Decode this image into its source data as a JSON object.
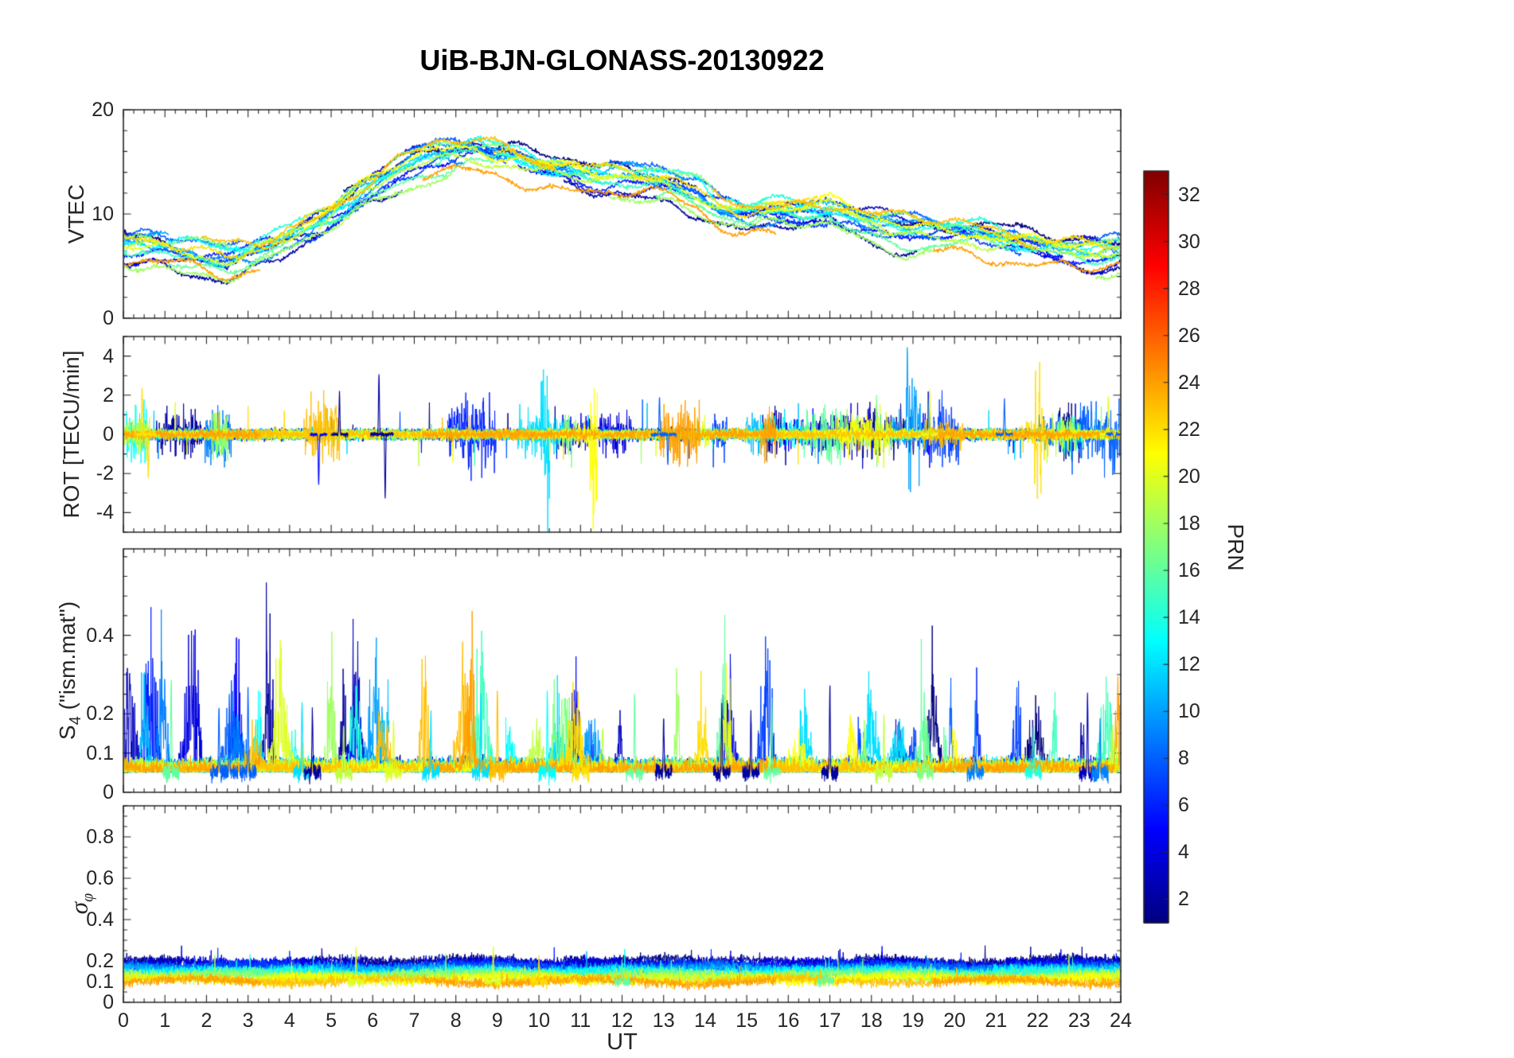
{
  "title": "UiB-BJN-GLONASS-20130922",
  "xlabel": "UT",
  "labels": {
    "vtec": "VTEC",
    "rot": "ROT [TECU/min]",
    "s4_main": "S",
    "s4_sub": "4",
    "s4_rest": " (\"ism.mat\")",
    "sigma_main": "σ",
    "sigma_sub": "φ",
    "colorbar": "PRN"
  },
  "chart_data": {
    "type": "line",
    "title": "UiB-BJN-GLONASS-20130922",
    "xlabel": "UT",
    "xlim": [
      0,
      24
    ],
    "xticks": [
      0,
      1,
      2,
      3,
      4,
      5,
      6,
      7,
      8,
      9,
      10,
      11,
      12,
      13,
      14,
      15,
      16,
      17,
      18,
      19,
      20,
      21,
      22,
      23,
      24
    ],
    "prns": [
      1,
      2,
      3,
      4,
      5,
      6,
      7,
      8,
      9,
      10,
      11,
      12,
      13,
      14,
      15,
      16,
      17,
      18,
      19,
      20,
      21,
      22,
      23,
      24
    ],
    "colorbar": {
      "label": "PRN",
      "colormap": "jet",
      "range": [
        1,
        33
      ],
      "ticks": [
        2,
        4,
        6,
        8,
        10,
        12,
        14,
        16,
        18,
        20,
        22,
        24,
        26,
        28,
        30,
        32
      ]
    },
    "panels": [
      {
        "name": "VTEC",
        "ylabel": "VTEC",
        "ylim": [
          0,
          20
        ],
        "yticks": [
          0,
          10,
          20
        ],
        "yminor_step": 2,
        "trend_x": [
          0,
          1,
          2,
          2.5,
          3.5,
          4.5,
          5.5,
          6.5,
          7.5,
          8.5,
          9.5,
          10.5,
          11.5,
          12.5,
          13.2,
          13.8,
          14.3,
          15,
          16,
          17,
          18,
          19,
          20,
          21,
          22,
          23,
          24
        ],
        "trend_y": [
          6.5,
          6.3,
          5.8,
          5.6,
          6.6,
          8.5,
          11,
          13.5,
          15.3,
          15.8,
          15,
          13.7,
          13.1,
          13,
          12.8,
          12,
          10.6,
          9.8,
          10,
          10.2,
          8.6,
          8,
          8,
          7.5,
          6.6,
          5.8,
          6
        ],
        "spread": 1.4
      },
      {
        "name": "ROT",
        "ylabel": "ROT [TECU/min]",
        "ylim": [
          -5,
          5
        ],
        "yticks": [
          -4,
          -2,
          0,
          2,
          4
        ],
        "yminor_step": 1,
        "noise_amp": 0.13,
        "spike_prob": 0.0015,
        "notable_spikes": [
          {
            "t": 0.45,
            "prn": 22,
            "amp": 2.3
          },
          {
            "t": 0.6,
            "prn": 22,
            "amp": -2.2
          },
          {
            "t": 4.7,
            "prn": 5,
            "amp": -2.6
          },
          {
            "t": 5.2,
            "prn": 2,
            "amp": 2.1
          },
          {
            "t": 6.15,
            "prn": 2,
            "amp": 3.1
          },
          {
            "t": 6.3,
            "prn": 2,
            "amp": -3.3
          },
          {
            "t": 12.9,
            "prn": 8,
            "amp": 1.9
          },
          {
            "t": 13.1,
            "prn": 8,
            "amp": -1.6
          },
          {
            "t": 19.4,
            "prn": 20,
            "amp": 2.3
          },
          {
            "t": 21.2,
            "prn": 8,
            "amp": 1.8
          },
          {
            "t": 23.7,
            "prn": 20,
            "amp": 2.0
          },
          {
            "t": 23.85,
            "prn": 8,
            "amp": -1.8
          }
        ]
      },
      {
        "name": "S4",
        "ylabel": "S4 (\"ism.mat\")",
        "ylim": [
          0,
          0.62
        ],
        "yticks": [
          0,
          0.1,
          0.2,
          0.4
        ],
        "yminor_step": 0.05,
        "baseline": 0.05,
        "noise_amp": 0.015,
        "notable_spikes": [
          {
            "t": 1.15,
            "prn": 16,
            "amp": 0.25
          },
          {
            "t": 2.3,
            "prn": 8,
            "amp": 0.17
          },
          {
            "t": 2.55,
            "prn": 8,
            "amp": 0.2
          },
          {
            "t": 3.0,
            "prn": 8,
            "amp": 0.21
          },
          {
            "t": 4.3,
            "prn": 12,
            "amp": 0.18
          },
          {
            "t": 4.55,
            "prn": 2,
            "amp": 0.16
          },
          {
            "t": 5.3,
            "prn": 19,
            "amp": 0.12
          },
          {
            "t": 6.5,
            "prn": 20,
            "amp": 0.13
          },
          {
            "t": 7.4,
            "prn": 12,
            "amp": 0.15
          },
          {
            "t": 8.6,
            "prn": 12,
            "amp": 0.2
          },
          {
            "t": 9.0,
            "prn": 23,
            "amp": 0.21
          },
          {
            "t": 10.2,
            "prn": 13,
            "amp": 0.2
          },
          {
            "t": 11.0,
            "prn": 22,
            "amp": 0.13
          },
          {
            "t": 12.3,
            "prn": 16,
            "amp": 0.19
          },
          {
            "t": 13.0,
            "prn": 2,
            "amp": 0.14
          },
          {
            "t": 14.4,
            "prn": 2,
            "amp": 0.17
          },
          {
            "t": 15.1,
            "prn": 2,
            "amp": 0.15
          },
          {
            "t": 15.6,
            "prn": 16,
            "amp": 0.19
          },
          {
            "t": 17.0,
            "prn": 2,
            "amp": 0.22
          },
          {
            "t": 18.3,
            "prn": 19,
            "amp": 0.14
          },
          {
            "t": 19.3,
            "prn": 17,
            "amp": 0.13
          },
          {
            "t": 20.5,
            "prn": 9,
            "amp": 0.18
          },
          {
            "t": 21.9,
            "prn": 14,
            "amp": 0.12
          },
          {
            "t": 23.2,
            "prn": 3,
            "amp": 0.2
          },
          {
            "t": 23.5,
            "prn": 9,
            "amp": 0.14
          }
        ]
      },
      {
        "name": "sigma_phi",
        "ylabel": "σ_φ",
        "ylim": [
          0,
          0.95
        ],
        "yticks": [
          0,
          0.1,
          0.2,
          0.4,
          0.6,
          0.8
        ],
        "yminor_step": 0.05,
        "baseline_max": 0.2,
        "baseline_min": 0.1,
        "noise_amp": 0.012,
        "notable_spikes": [
          {
            "t": 5.6,
            "prn": 20,
            "amp": 0.16
          },
          {
            "t": 8.9,
            "prn": 20,
            "amp": 0.17
          },
          {
            "t": 10.0,
            "prn": 22,
            "amp": 0.12
          },
          {
            "t": 12.0,
            "prn": 16,
            "amp": 0.1
          },
          {
            "t": 16.9,
            "prn": 16,
            "amp": 0.1
          }
        ]
      }
    ]
  }
}
